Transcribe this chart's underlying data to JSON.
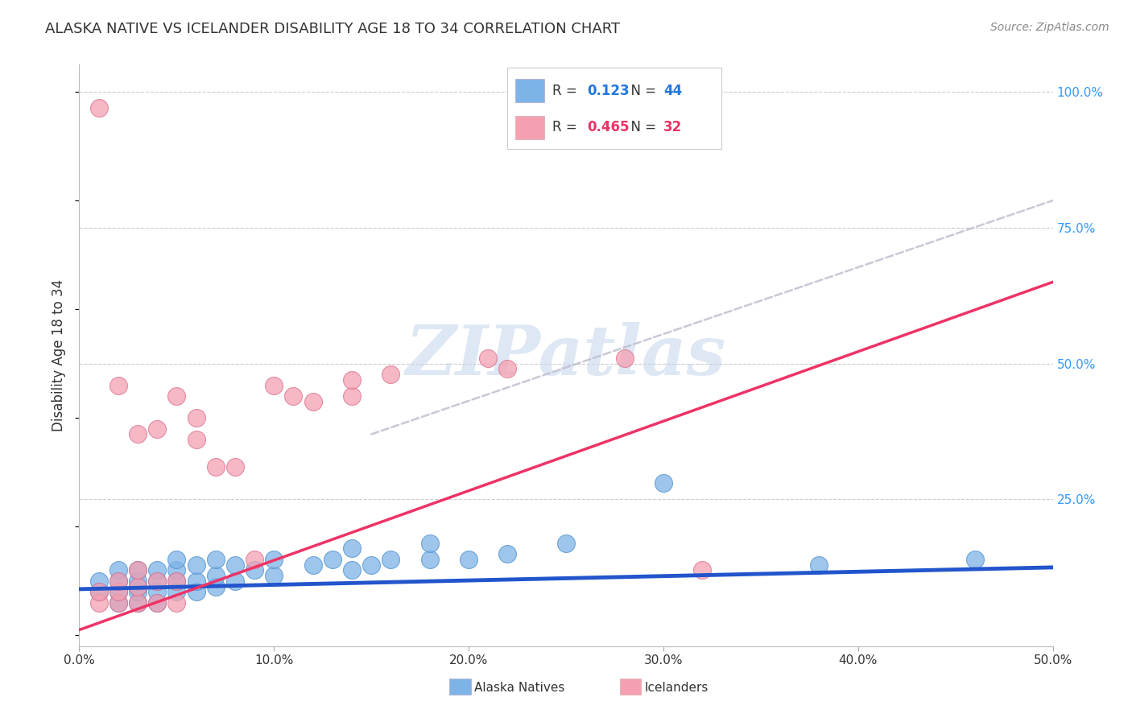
{
  "title": "ALASKA NATIVE VS ICELANDER DISABILITY AGE 18 TO 34 CORRELATION CHART",
  "source_text": "Source: ZipAtlas.com",
  "ylabel": "Disability Age 18 to 34",
  "xlim": [
    0.0,
    0.5
  ],
  "ylim": [
    -0.02,
    1.05
  ],
  "xtick_labels": [
    "0.0%",
    "10.0%",
    "20.0%",
    "30.0%",
    "40.0%",
    "50.0%"
  ],
  "xtick_values": [
    0.0,
    0.1,
    0.2,
    0.3,
    0.4,
    0.5
  ],
  "ytick_labels_right": [
    "100.0%",
    "75.0%",
    "50.0%",
    "25.0%"
  ],
  "ytick_values_right": [
    1.0,
    0.75,
    0.5,
    0.25
  ],
  "alaska_color": "#7EB3E8",
  "alaska_edge_color": "#5090CC",
  "icelander_color": "#F4A0B0",
  "icelander_edge_color": "#DD7090",
  "alaska_line_color": "#2255CC",
  "icelander_line_color": "#EE3366",
  "dash_color": "#BBBBCC",
  "R_alaska": 0.123,
  "N_alaska": 44,
  "R_icelander": 0.465,
  "N_icelander": 32,
  "watermark": "ZIPatlas",
  "watermark_color": "#C8D8EE",
  "background_color": "#FFFFFF",
  "alaska_x": [
    0.01,
    0.01,
    0.02,
    0.02,
    0.02,
    0.02,
    0.03,
    0.03,
    0.03,
    0.03,
    0.03,
    0.04,
    0.04,
    0.04,
    0.04,
    0.05,
    0.05,
    0.05,
    0.05,
    0.06,
    0.06,
    0.06,
    0.07,
    0.07,
    0.07,
    0.08,
    0.08,
    0.09,
    0.1,
    0.1,
    0.12,
    0.13,
    0.14,
    0.14,
    0.15,
    0.16,
    0.18,
    0.18,
    0.2,
    0.22,
    0.25,
    0.3,
    0.38,
    0.46
  ],
  "alaska_y": [
    0.08,
    0.1,
    0.06,
    0.08,
    0.1,
    0.12,
    0.06,
    0.08,
    0.09,
    0.1,
    0.12,
    0.06,
    0.08,
    0.1,
    0.12,
    0.08,
    0.1,
    0.12,
    0.14,
    0.08,
    0.1,
    0.13,
    0.09,
    0.11,
    0.14,
    0.1,
    0.13,
    0.12,
    0.11,
    0.14,
    0.13,
    0.14,
    0.12,
    0.16,
    0.13,
    0.14,
    0.14,
    0.17,
    0.14,
    0.15,
    0.17,
    0.28,
    0.13,
    0.14
  ],
  "icelander_x": [
    0.01,
    0.01,
    0.01,
    0.02,
    0.02,
    0.02,
    0.02,
    0.03,
    0.03,
    0.03,
    0.03,
    0.04,
    0.04,
    0.04,
    0.05,
    0.05,
    0.05,
    0.06,
    0.06,
    0.07,
    0.08,
    0.09,
    0.1,
    0.11,
    0.12,
    0.14,
    0.14,
    0.16,
    0.21,
    0.22,
    0.28,
    0.32
  ],
  "icelander_y": [
    0.06,
    0.08,
    0.97,
    0.06,
    0.08,
    0.1,
    0.46,
    0.06,
    0.09,
    0.12,
    0.37,
    0.06,
    0.1,
    0.38,
    0.06,
    0.1,
    0.44,
    0.36,
    0.4,
    0.31,
    0.31,
    0.14,
    0.46,
    0.44,
    0.43,
    0.44,
    0.47,
    0.48,
    0.51,
    0.49,
    0.51,
    0.12
  ],
  "alaska_trend_x": [
    0.0,
    0.5
  ],
  "alaska_trend_y": [
    0.085,
    0.125
  ],
  "icelander_trend_x": [
    0.0,
    0.5
  ],
  "icelander_trend_y": [
    0.01,
    0.65
  ],
  "dash_trend_x": [
    0.15,
    0.5
  ],
  "dash_trend_y": [
    0.37,
    0.8
  ]
}
